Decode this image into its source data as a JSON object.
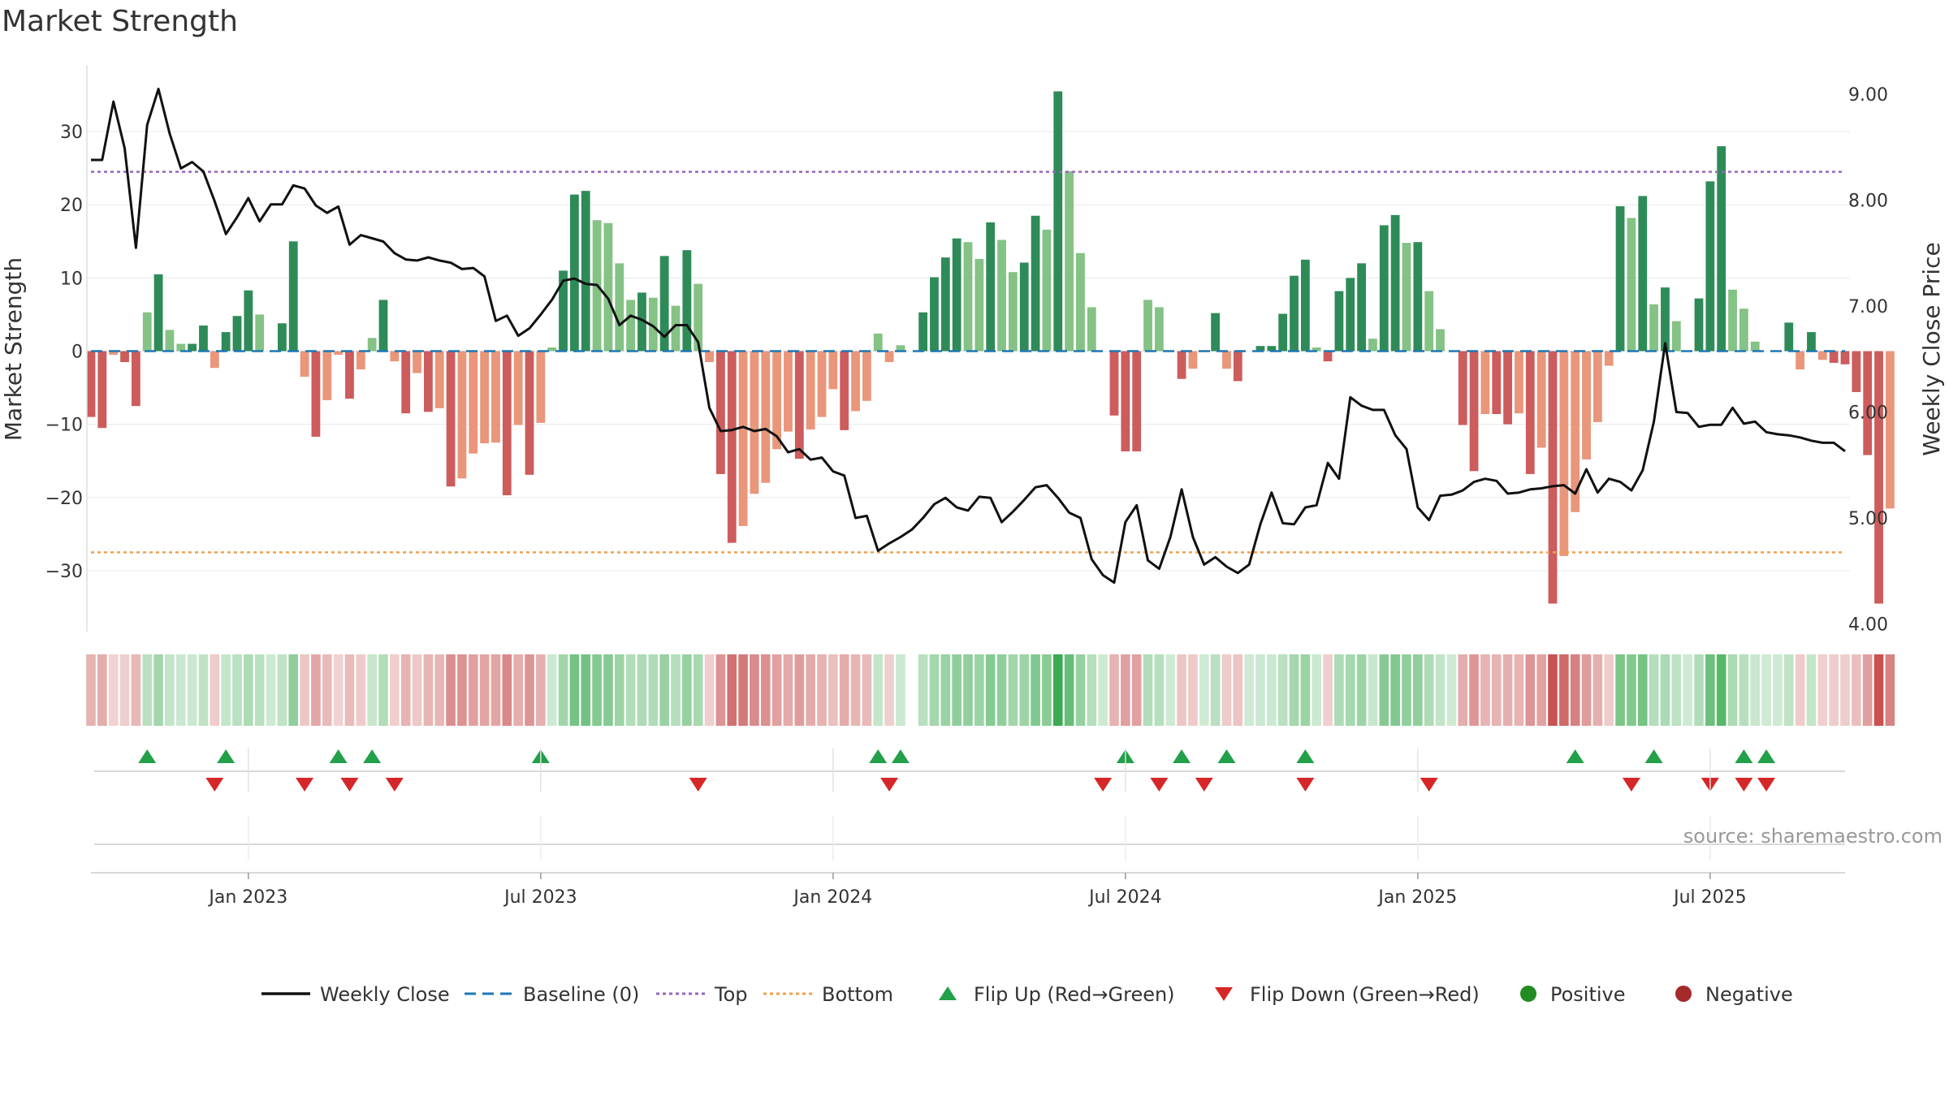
{
  "chart_data": {
    "type": "bar",
    "title": "Market Strength",
    "ylabel_left": "Market Strength",
    "ylabel_right": "Weekly Close Price",
    "source": "source: sharemaestro.com",
    "ylim_left": [
      -38,
      38
    ],
    "ylim_right": [
      3.95,
      9.2
    ],
    "yticks_left": [
      "30",
      "20",
      "10",
      "0",
      "−10",
      "−20",
      "−30"
    ],
    "yticks_left_values": [
      30,
      20,
      10,
      0,
      -10,
      -20,
      -30
    ],
    "yticks_right": [
      "9.00",
      "8.00",
      "7.00",
      "6.00",
      "5.00",
      "4.00"
    ],
    "yticks_right_values": [
      9,
      8,
      7,
      6,
      5,
      4
    ],
    "top_line": 24.5,
    "bottom_line": -27.5,
    "xticks": [
      {
        "label": "Jan 2023",
        "week": 14
      },
      {
        "label": "Jul 2023",
        "week": 40
      },
      {
        "label": "Jan 2024",
        "week": 66
      },
      {
        "label": "Jul 2024",
        "week": 92
      },
      {
        "label": "Jan 2025",
        "week": 118
      },
      {
        "label": "Jul 2025",
        "week": 144
      }
    ],
    "n_weeks": 157,
    "market_strength": [
      -9,
      -10.5,
      -0.5,
      -1.5,
      -7.5,
      5.3,
      10.5,
      2.9,
      1,
      1,
      3.5,
      -2.3,
      2.6,
      4.8,
      8.3,
      5,
      0,
      3.8,
      15,
      -3.5,
      -11.7,
      -6.7,
      -0.5,
      -6.5,
      -2.5,
      1.8,
      7,
      -1.4,
      -8.5,
      -3,
      -8.3,
      -7.8,
      -18.5,
      -17.4,
      -14,
      -12.6,
      -12.5,
      -19.7,
      -10.1,
      -16.9,
      -9.8,
      0.5,
      11,
      21.4,
      21.9,
      17.9,
      17.5,
      12,
      7,
      8,
      7.3,
      13,
      6.2,
      13.8,
      9.2,
      -1.5,
      -16.8,
      -26.2,
      -23.9,
      -19.5,
      -18,
      -13.4,
      -11,
      -14.7,
      -10.7,
      -9,
      -5.2,
      -10.8,
      -8.2,
      -6.8,
      2.4,
      -1.5,
      0.8,
      0,
      5.3,
      10.1,
      12.8,
      15.4,
      14.9,
      12.6,
      17.6,
      15.2,
      10.8,
      12.1,
      18.5,
      16.6,
      35.5,
      24.6,
      13.4,
      6,
      0,
      -8.8,
      -13.7,
      -13.7,
      7,
      6,
      0,
      -3.8,
      -2.4,
      0,
      5.2,
      -2.4,
      -4.1,
      0,
      0.7,
      0.7,
      5.1,
      10.3,
      12.5,
      0.5,
      -1.4,
      8.2,
      10,
      12,
      1.7,
      17.2,
      18.6,
      14.8,
      14.9,
      8.2,
      3,
      0,
      -10.1,
      -16.4,
      -8.6,
      -8.6,
      -10,
      -8.5,
      -16.8,
      -13.2,
      -34.5,
      -28,
      -22,
      -14.8,
      -9.7,
      -2,
      19.8,
      18.2,
      21.2,
      6.4,
      8.7,
      4.1,
      0,
      7.2,
      23.2,
      28,
      8.4,
      5.8,
      1.3,
      0,
      0,
      3.9,
      -2.5,
      2.6,
      -1.2,
      -1.6,
      -1.8,
      -5.6,
      -14.2,
      -34.5,
      -21.5
    ],
    "weekly_close": [
      8.38,
      8.38,
      8.93,
      8.49,
      7.55,
      8.71,
      9.05,
      8.63,
      8.3,
      8.36,
      8.27,
      7.99,
      7.68,
      7.84,
      8.02,
      7.8,
      7.96,
      7.96,
      8.14,
      8.11,
      7.95,
      7.88,
      7.94,
      7.58,
      7.67,
      7.64,
      7.61,
      7.5,
      7.44,
      7.43,
      7.46,
      7.43,
      7.41,
      7.35,
      7.36,
      7.28,
      6.86,
      6.91,
      6.72,
      6.79,
      6.92,
      7.06,
      7.24,
      7.26,
      7.21,
      7.2,
      7.07,
      6.82,
      6.91,
      6.87,
      6.81,
      6.71,
      6.82,
      6.82,
      6.66,
      6.04,
      5.82,
      5.83,
      5.86,
      5.82,
      5.84,
      5.77,
      5.62,
      5.65,
      5.55,
      5.57,
      5.44,
      5.4,
      5.0,
      5.02,
      4.69,
      4.76,
      4.82,
      4.89,
      5.0,
      5.13,
      5.19,
      5.1,
      5.07,
      5.2,
      5.19,
      4.96,
      5.06,
      5.17,
      5.29,
      5.31,
      5.19,
      5.05,
      5.0,
      4.61,
      4.46,
      4.39,
      4.96,
      5.12,
      4.6,
      4.52,
      4.82,
      5.27,
      4.82,
      4.56,
      4.63,
      4.54,
      4.48,
      4.56,
      4.94,
      5.24,
      4.95,
      4.94,
      5.1,
      5.12,
      5.52,
      5.37,
      6.14,
      6.06,
      6.02,
      6.02,
      5.78,
      5.65,
      5.1,
      4.98,
      5.21,
      5.22,
      5.26,
      5.34,
      5.37,
      5.35,
      5.23,
      5.24,
      5.27,
      5.28,
      5.3,
      5.31,
      5.23,
      5.46,
      5.24,
      5.37,
      5.34,
      5.26,
      5.45,
      5.91,
      6.65,
      6.0,
      5.99,
      5.86,
      5.88,
      5.88,
      6.04,
      5.89,
      5.91,
      5.81,
      5.79,
      5.78,
      5.76,
      5.73,
      5.71,
      5.71,
      5.63
    ],
    "flip_up_weeks": [
      5,
      12,
      22,
      25,
      40,
      70,
      72,
      92,
      97,
      101,
      108,
      132,
      139,
      147,
      149
    ],
    "flip_down_weeks": [
      11,
      19,
      23,
      27,
      54,
      71,
      90,
      95,
      99,
      108,
      119,
      137,
      144,
      147,
      149
    ],
    "legend": [
      {
        "label": "Weekly Close",
        "kind": "line",
        "color": "#111111"
      },
      {
        "label": "Baseline (0)",
        "kind": "dash",
        "color": "#1f77b4"
      },
      {
        "label": "Top",
        "kind": "dot",
        "color": "#9467bd"
      },
      {
        "label": "Bottom",
        "kind": "dot",
        "color": "#f0a050"
      },
      {
        "label": "Flip Up (Red→Green)",
        "kind": "up",
        "color": "#22a04a"
      },
      {
        "label": "Flip Down (Green→Red)",
        "kind": "down",
        "color": "#d62728"
      },
      {
        "label": "Positive",
        "kind": "circle",
        "color": "#228b22"
      },
      {
        "label": "Negative",
        "kind": "circle",
        "color": "#a52a2a"
      }
    ],
    "colors": {
      "pos_strong": "#2e8b57",
      "pos_light": "#85c285",
      "neg_strong": "#cd5c5c",
      "neg_light": "#e9967a",
      "baseline": "#1f77b4",
      "top": "#9467bd",
      "bottom": "#f0a050",
      "flip_up": "#22a04a",
      "flip_down": "#d62728"
    }
  }
}
